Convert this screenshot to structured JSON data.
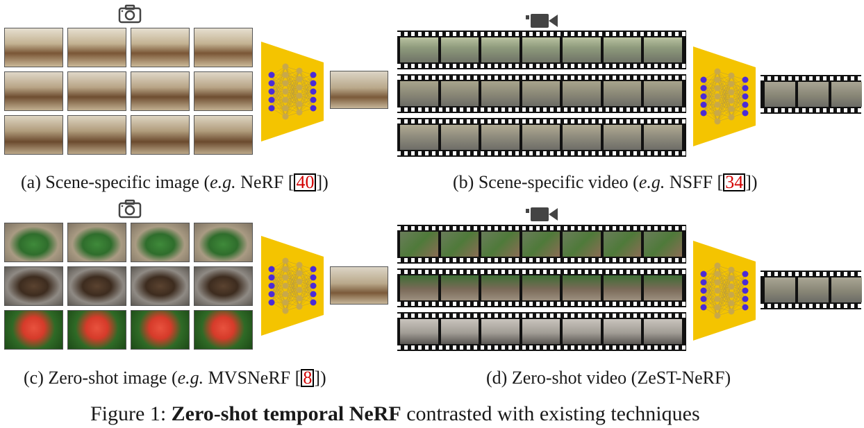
{
  "captions": {
    "a": {
      "pre": "(a) Scene-specific image (",
      "eg": "e.g.",
      "mid": " NeRF [",
      "ref": "40",
      "post": "])"
    },
    "b": {
      "pre": "(b) Scene-specific video (",
      "eg": "e.g.",
      "mid": " NSFF [",
      "ref": "34",
      "post": "])"
    },
    "c": {
      "pre": "(c) Zero-shot image (",
      "eg": "e.g.",
      "mid": " MVSNeRF [",
      "ref": "8",
      "post": "])"
    },
    "d": {
      "text": "(d) Zero-shot video (ZeST-NeRF)"
    }
  },
  "figure": {
    "prefix": "Figure 1: ",
    "bold": "Zero-shot temporal NeRF",
    "suffix": " contrasted with existing techniques"
  },
  "icons": {
    "camera": "camera-icon",
    "video": "video-camera-icon"
  },
  "colors": {
    "network": "#f4c400",
    "node_blue": "#4b2bd6",
    "node_gold": "#c8a84a",
    "film": "#111111"
  }
}
